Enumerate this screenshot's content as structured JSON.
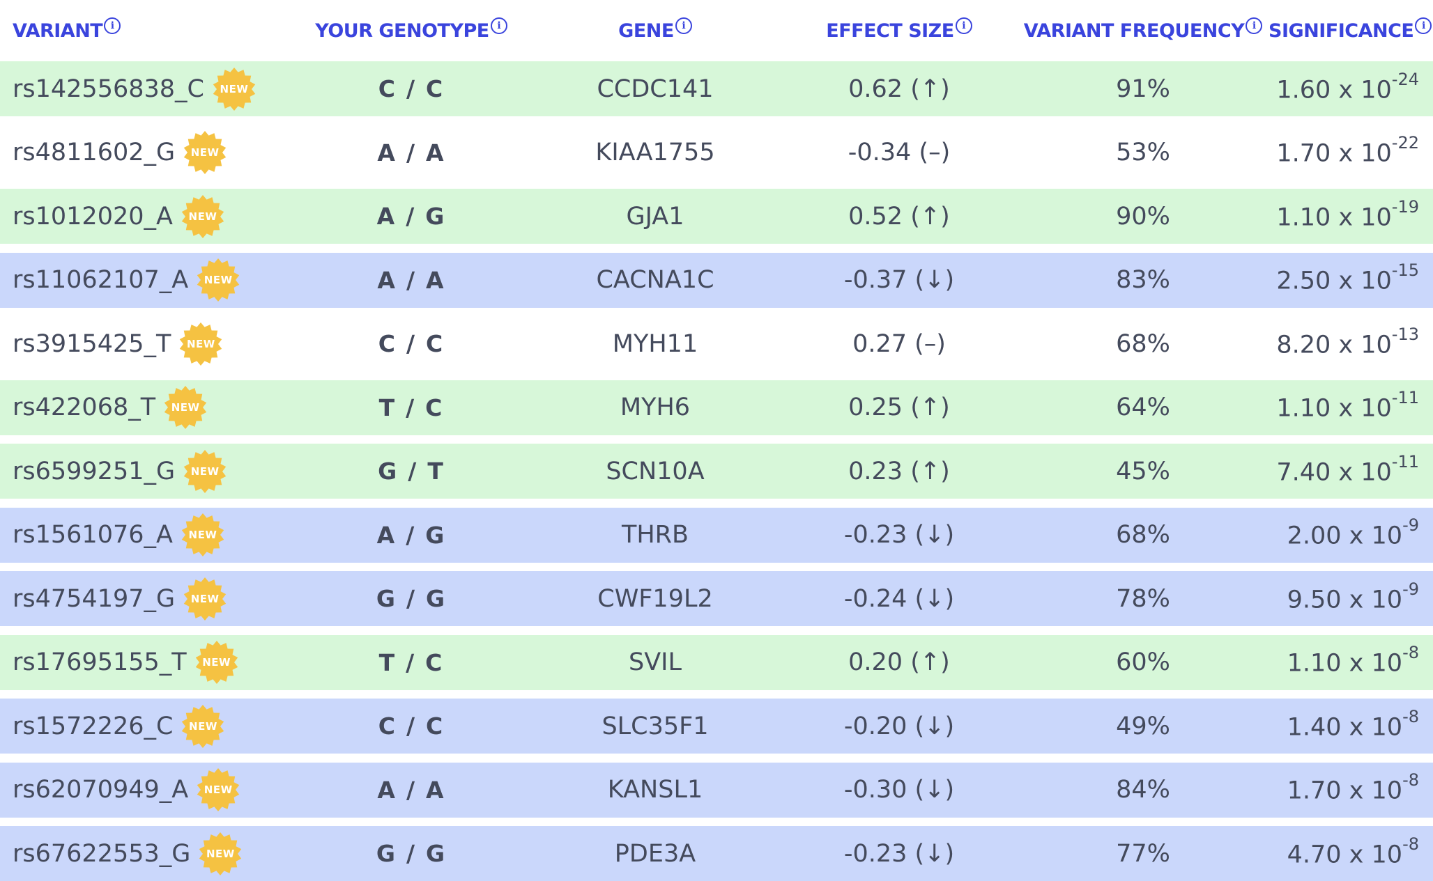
{
  "columns": {
    "variant": "VARIANT",
    "genotype": "YOUR GENOTYPE",
    "gene": "GENE",
    "effect": "EFFECT SIZE",
    "frequency": "VARIANT FREQUENCY",
    "significance": "SIGNIFICANCE",
    "info_glyph": "i"
  },
  "badge_label": "NEW",
  "colors": {
    "header_text": "#3a44dd",
    "row_increase": "#d7f7d9",
    "row_neutral": "#ffffff",
    "row_decrease": "#cad7fb",
    "badge": "#f5c242"
  },
  "rows": [
    {
      "variant": "rs142556838_C",
      "a1": "C",
      "a2": "C",
      "gene": "CCDC141",
      "effect": "0.62 (↑)",
      "freq": "91%",
      "sig_base": "1.60 x 10",
      "sig_exp": "-24",
      "tone": "green"
    },
    {
      "variant": "rs4811602_G",
      "a1": "A",
      "a2": "A",
      "gene": "KIAA1755",
      "effect": "-0.34 (–)",
      "freq": "53%",
      "sig_base": "1.70 x 10",
      "sig_exp": "-22",
      "tone": "white"
    },
    {
      "variant": "rs1012020_A",
      "a1": "A",
      "a2": "G",
      "gene": "GJA1",
      "effect": "0.52 (↑)",
      "freq": "90%",
      "sig_base": "1.10 x 10",
      "sig_exp": "-19",
      "tone": "green"
    },
    {
      "variant": "rs11062107_A",
      "a1": "A",
      "a2": "A",
      "gene": "CACNA1C",
      "effect": "-0.37 (↓)",
      "freq": "83%",
      "sig_base": "2.50 x 10",
      "sig_exp": "-15",
      "tone": "blue"
    },
    {
      "variant": "rs3915425_T",
      "a1": "C",
      "a2": "C",
      "gene": "MYH11",
      "effect": "0.27 (–)",
      "freq": "68%",
      "sig_base": "8.20 x 10",
      "sig_exp": "-13",
      "tone": "white"
    },
    {
      "variant": "rs422068_T",
      "a1": "T",
      "a2": "C",
      "gene": "MYH6",
      "effect": "0.25 (↑)",
      "freq": "64%",
      "sig_base": "1.10 x 10",
      "sig_exp": "-11",
      "tone": "green"
    },
    {
      "variant": "rs6599251_G",
      "a1": "G",
      "a2": "T",
      "gene": "SCN10A",
      "effect": "0.23 (↑)",
      "freq": "45%",
      "sig_base": "7.40 x 10",
      "sig_exp": "-11",
      "tone": "green"
    },
    {
      "variant": "rs1561076_A",
      "a1": "A",
      "a2": "G",
      "gene": "THRB",
      "effect": "-0.23 (↓)",
      "freq": "68%",
      "sig_base": "2.00 x 10",
      "sig_exp": "-9",
      "tone": "blue"
    },
    {
      "variant": "rs4754197_G",
      "a1": "G",
      "a2": "G",
      "gene": "CWF19L2",
      "effect": "-0.24 (↓)",
      "freq": "78%",
      "sig_base": "9.50 x 10",
      "sig_exp": "-9",
      "tone": "blue"
    },
    {
      "variant": "rs17695155_T",
      "a1": "T",
      "a2": "C",
      "gene": "SVIL",
      "effect": "0.20 (↑)",
      "freq": "60%",
      "sig_base": "1.10 x 10",
      "sig_exp": "-8",
      "tone": "green"
    },
    {
      "variant": "rs1572226_C",
      "a1": "C",
      "a2": "C",
      "gene": "SLC35F1",
      "effect": "-0.20 (↓)",
      "freq": "49%",
      "sig_base": "1.40 x 10",
      "sig_exp": "-8",
      "tone": "blue"
    },
    {
      "variant": "rs62070949_A",
      "a1": "A",
      "a2": "A",
      "gene": "KANSL1",
      "effect": "-0.30 (↓)",
      "freq": "84%",
      "sig_base": "1.70 x 10",
      "sig_exp": "-8",
      "tone": "blue"
    },
    {
      "variant": "rs67622553_G",
      "a1": "G",
      "a2": "G",
      "gene": "PDE3A",
      "effect": "-0.23 (↓)",
      "freq": "77%",
      "sig_base": "4.70 x 10",
      "sig_exp": "-8",
      "tone": "blue"
    }
  ]
}
